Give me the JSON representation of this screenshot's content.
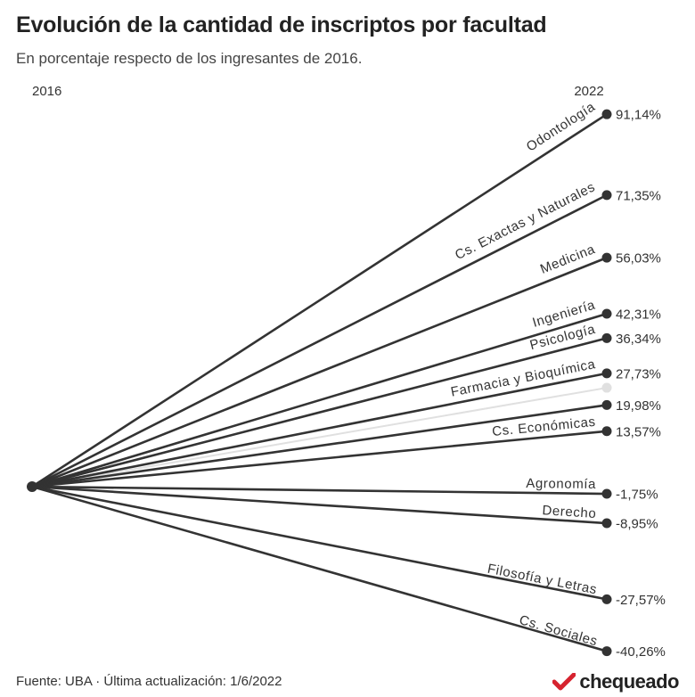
{
  "chart_data": {
    "type": "line",
    "title": "Evolución de la cantidad de inscriptos por facultad",
    "subtitle": "En porcentaje respecto de los ingresantes de 2016.",
    "x": [
      "2016",
      "2022"
    ],
    "series": [
      {
        "name": "Odontología",
        "values": [
          0,
          91.14
        ],
        "label": "91,14%"
      },
      {
        "name": "Cs. Exactas y Naturales",
        "values": [
          0,
          71.35
        ],
        "label": "71,35%"
      },
      {
        "name": "Medicina",
        "values": [
          0,
          56.03
        ],
        "label": "56,03%"
      },
      {
        "name": "Ingeniería",
        "values": [
          0,
          42.31
        ],
        "label": "42,31%"
      },
      {
        "name": "Psicología",
        "values": [
          0,
          36.34
        ],
        "label": "36,34%"
      },
      {
        "name": "Farmacia y Bioquímica",
        "values": [
          0,
          27.73
        ],
        "label": "27,73%"
      },
      {
        "name": "",
        "values": [
          0,
          24.2
        ],
        "label": "",
        "muted": true
      },
      {
        "name": "",
        "values": [
          0,
          19.98
        ],
        "label": "19,98%"
      },
      {
        "name": "Cs. Económicas",
        "values": [
          0,
          13.57
        ],
        "label": "13,57%"
      },
      {
        "name": "Agronomía",
        "values": [
          0,
          -1.75
        ],
        "label": "-1,75%"
      },
      {
        "name": "Derecho",
        "values": [
          0,
          -8.95
        ],
        "label": "-8,95%"
      },
      {
        "name": "Filosofía y Letras",
        "values": [
          0,
          -27.57
        ],
        "label": "-27,57%"
      },
      {
        "name": "Cs. Sociales",
        "values": [
          0,
          -40.26
        ],
        "label": "-40,26%"
      }
    ],
    "ylim": [
      -42,
      93
    ]
  },
  "colors": {
    "line": "#333333",
    "muted": "#e0e0e0",
    "brand": "#d6232f"
  },
  "source": "Fuente: UBA · Última actualización: 1/6/2022",
  "brand_name": "chequeado"
}
